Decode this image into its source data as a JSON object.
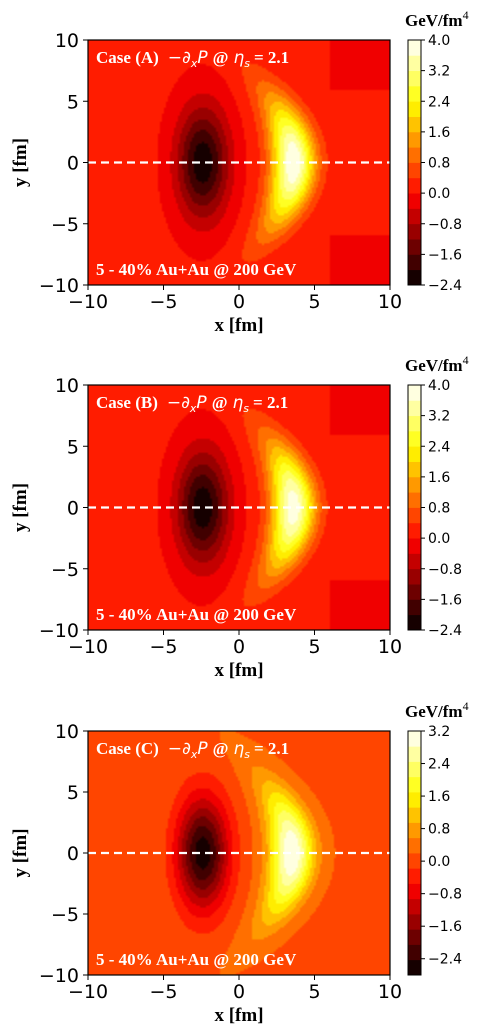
{
  "chart_data": [
    {
      "type": "heatmap",
      "title": "Case (A)",
      "quantity": "−∂xP @ ηs = 2.1",
      "label_case": "Case (A)",
      "label_math": "−∂",
      "label_sub1": "x",
      "label_math2": "P",
      "label_at": "@",
      "label_eta": "η",
      "label_sub2": "s",
      "label_val": "= 2.1",
      "annotation": "5 - 40% Au+Au @ 200 GeV",
      "xlabel": "x [fm]",
      "ylabel": "y [fm]",
      "xlim": [
        -10,
        10
      ],
      "ylim": [
        -10,
        10
      ],
      "xticks": [
        "−10",
        "−5",
        "0",
        "5",
        "10"
      ],
      "yticks": [
        "−10",
        "−5",
        "0",
        "5",
        "10"
      ],
      "colorbar": {
        "label": "GeV/fm",
        "label_sup": "4",
        "range": [
          -2.4,
          4.0
        ],
        "ticks": [
          "−2.4",
          "−1.6",
          "−0.8",
          "0.0",
          "0.8",
          "1.6",
          "2.4",
          "3.2",
          "4.0"
        ]
      },
      "field": {
        "min_peak": -2.4,
        "min_x": -2.4,
        "min_y": 0.0,
        "max_peak": 4.0,
        "max_x": 3.6,
        "max_y": 0.0,
        "background": 0.1
      },
      "dashed_line_y": 0
    },
    {
      "type": "heatmap",
      "title": "Case (B)",
      "quantity": "−∂xP @ ηs = 2.1",
      "label_case": "Case (B)",
      "label_math": "−∂",
      "label_sub1": "x",
      "label_math2": "P",
      "label_at": "@",
      "label_eta": "η",
      "label_sub2": "s",
      "label_val": "= 2.1",
      "annotation": "5 - 40% Au+Au @ 200 GeV",
      "xlabel": "x [fm]",
      "ylabel": "y [fm]",
      "xlim": [
        -10,
        10
      ],
      "ylim": [
        -10,
        10
      ],
      "xticks": [
        "−10",
        "−5",
        "0",
        "5",
        "10"
      ],
      "yticks": [
        "−10",
        "−5",
        "0",
        "5",
        "10"
      ],
      "colorbar": {
        "label": "GeV/fm",
        "label_sup": "4",
        "range": [
          -2.4,
          4.0
        ],
        "ticks": [
          "−2.4",
          "−1.6",
          "−0.8",
          "0.0",
          "0.8",
          "1.6",
          "2.4",
          "3.2",
          "4.0"
        ]
      },
      "field": {
        "min_peak": -2.4,
        "min_x": -2.4,
        "min_y": 0.0,
        "max_peak": 3.9,
        "max_x": 3.6,
        "max_y": 0.0,
        "background": 0.1
      },
      "dashed_line_y": 0
    },
    {
      "type": "heatmap",
      "title": "Case (C)",
      "quantity": "−∂xP @ ηs = 2.1",
      "label_case": "Case (C)",
      "label_math": "−∂",
      "label_sub1": "x",
      "label_math2": "P",
      "label_at": "@",
      "label_eta": "η",
      "label_sub2": "s",
      "label_val": "= 2.1",
      "annotation": "5 - 40% Au+Au @ 200 GeV",
      "xlabel": "x [fm]",
      "ylabel": "y [fm]",
      "xlim": [
        -10,
        10
      ],
      "ylim": [
        -10,
        10
      ],
      "xticks": [
        "−10",
        "−5",
        "0",
        "5",
        "10"
      ],
      "yticks": [
        "−10",
        "−5",
        "0",
        "5",
        "10"
      ],
      "colorbar": {
        "label": "GeV/fm",
        "label_sup": "4",
        "range": [
          -2.8,
          3.2
        ],
        "ticks": [
          "−2.4",
          "−1.6",
          "−0.8",
          "0.0",
          "0.8",
          "1.6",
          "2.4",
          "3.2"
        ]
      },
      "field": {
        "min_peak": -2.8,
        "min_x": -2.4,
        "min_y": 0.0,
        "max_peak": 3.2,
        "max_x": 3.5,
        "max_y": 0.0,
        "background": 0.15
      },
      "dashed_line_y": 0
    }
  ]
}
